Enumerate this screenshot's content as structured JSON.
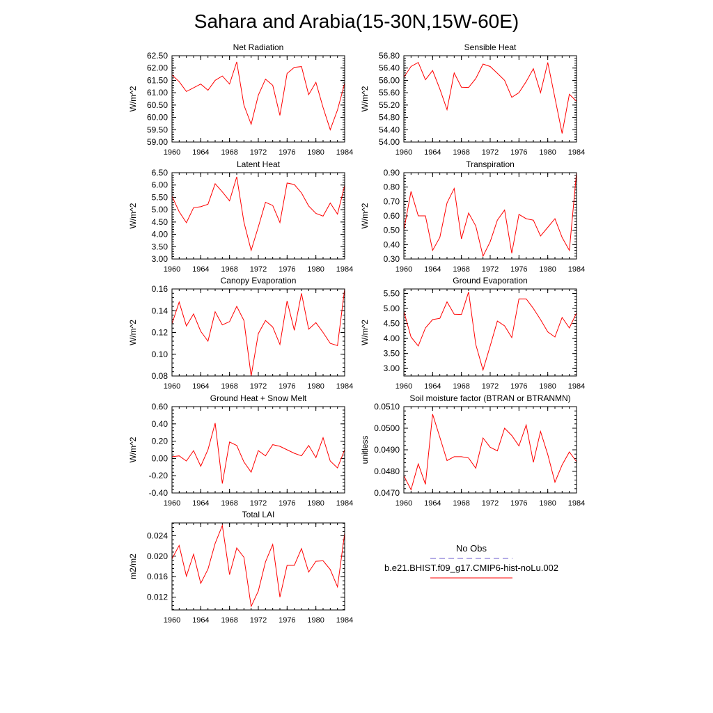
{
  "figure": {
    "title": "Sahara and Arabia(15-30N,15W-60E)",
    "line_color": "#ff0000",
    "obs_color": "#6a5acd"
  },
  "legend": {
    "obs_label": "No Obs",
    "model_label": "b.e21.BHIST.f09_g17.CMIP6-hist-noLu.002"
  },
  "chart_data": [
    {
      "type": "line",
      "title": "Net Radiation",
      "ylabel": "W/m^2",
      "xlim": [
        1960,
        1984
      ],
      "ylim": [
        59.0,
        62.5
      ],
      "xticks": [
        1960,
        1964,
        1968,
        1972,
        1976,
        1980,
        1984
      ],
      "yticks": [
        59.0,
        59.5,
        60.0,
        60.5,
        61.0,
        61.5,
        62.0,
        62.5
      ],
      "ytick_labels": [
        "59.00",
        "59.50",
        "60.00",
        "60.50",
        "61.00",
        "61.50",
        "62.00",
        "62.50"
      ],
      "x": [
        1960,
        1961,
        1962,
        1963,
        1964,
        1965,
        1966,
        1967,
        1968,
        1969,
        1970,
        1971,
        1972,
        1973,
        1974,
        1975,
        1976,
        1977,
        1978,
        1979,
        1980,
        1981,
        1982,
        1983,
        1984
      ],
      "values": [
        61.72,
        61.45,
        61.05,
        61.2,
        61.35,
        61.1,
        61.5,
        61.68,
        61.35,
        62.25,
        60.5,
        59.72,
        60.9,
        61.55,
        61.3,
        60.08,
        61.78,
        62.03,
        62.06,
        60.92,
        61.42,
        60.4,
        59.5,
        60.3,
        61.38
      ]
    },
    {
      "type": "line",
      "title": "Sensible Heat",
      "ylabel": "W/m^2",
      "xlim": [
        1960,
        1984
      ],
      "ylim": [
        54.0,
        56.8
      ],
      "xticks": [
        1960,
        1964,
        1968,
        1972,
        1976,
        1980,
        1984
      ],
      "yticks": [
        54.0,
        54.4,
        54.8,
        55.2,
        55.6,
        56.0,
        56.4,
        56.8
      ],
      "ytick_labels": [
        "54.00",
        "54.40",
        "54.80",
        "55.20",
        "55.60",
        "56.00",
        "56.40",
        "56.80"
      ],
      "x": [
        1960,
        1961,
        1962,
        1963,
        1964,
        1965,
        1966,
        1967,
        1968,
        1969,
        1970,
        1971,
        1972,
        1973,
        1974,
        1975,
        1976,
        1977,
        1978,
        1979,
        1980,
        1981,
        1982,
        1983,
        1984
      ],
      "values": [
        56.1,
        56.45,
        56.58,
        56.02,
        56.32,
        55.72,
        55.05,
        56.24,
        55.78,
        55.77,
        56.06,
        56.53,
        56.45,
        56.23,
        56.0,
        55.45,
        55.6,
        55.96,
        56.38,
        55.6,
        56.58,
        55.43,
        54.28,
        55.55,
        55.32
      ]
    },
    {
      "type": "line",
      "title": "Latent Heat",
      "ylabel": "W/m^2",
      "xlim": [
        1960,
        1984
      ],
      "ylim": [
        3.0,
        6.5
      ],
      "xticks": [
        1960,
        1964,
        1968,
        1972,
        1976,
        1980,
        1984
      ],
      "yticks": [
        3.0,
        3.5,
        4.0,
        4.5,
        5.0,
        5.5,
        6.0,
        6.5
      ],
      "ytick_labels": [
        "3.00",
        "3.50",
        "4.00",
        "4.50",
        "5.00",
        "5.50",
        "6.00",
        "6.50"
      ],
      "x": [
        1960,
        1961,
        1962,
        1963,
        1964,
        1965,
        1966,
        1967,
        1968,
        1969,
        1970,
        1971,
        1972,
        1973,
        1974,
        1975,
        1976,
        1977,
        1978,
        1979,
        1980,
        1981,
        1982,
        1983,
        1984
      ],
      "values": [
        5.55,
        4.92,
        4.47,
        5.08,
        5.12,
        5.22,
        6.05,
        5.72,
        5.36,
        6.33,
        4.5,
        3.35,
        4.3,
        5.3,
        5.17,
        4.48,
        6.08,
        6.02,
        5.68,
        5.15,
        4.85,
        4.74,
        5.27,
        4.82,
        5.98
      ]
    },
    {
      "type": "line",
      "title": "Transpiration",
      "ylabel": "W/m^2",
      "xlim": [
        1960,
        1984
      ],
      "ylim": [
        0.3,
        0.9
      ],
      "xticks": [
        1960,
        1964,
        1968,
        1972,
        1976,
        1980,
        1984
      ],
      "yticks": [
        0.3,
        0.4,
        0.5,
        0.6,
        0.7,
        0.8,
        0.9
      ],
      "ytick_labels": [
        "0.30",
        "0.40",
        "0.50",
        "0.60",
        "0.70",
        "0.80",
        "0.90"
      ],
      "x": [
        1960,
        1961,
        1962,
        1963,
        1964,
        1965,
        1966,
        1967,
        1968,
        1969,
        1970,
        1971,
        1972,
        1973,
        1974,
        1975,
        1976,
        1977,
        1978,
        1979,
        1980,
        1981,
        1982,
        1983,
        1984
      ],
      "values": [
        0.5,
        0.77,
        0.6,
        0.6,
        0.36,
        0.45,
        0.69,
        0.79,
        0.44,
        0.62,
        0.53,
        0.32,
        0.42,
        0.57,
        0.64,
        0.34,
        0.61,
        0.58,
        0.57,
        0.46,
        0.52,
        0.58,
        0.45,
        0.36,
        0.9
      ]
    },
    {
      "type": "line",
      "title": "Canopy Evaporation",
      "ylabel": "W/m^2",
      "xlim": [
        1960,
        1984
      ],
      "ylim": [
        0.08,
        0.16
      ],
      "xticks": [
        1960,
        1964,
        1968,
        1972,
        1976,
        1980,
        1984
      ],
      "yticks": [
        0.08,
        0.1,
        0.12,
        0.14,
        0.16
      ],
      "ytick_labels": [
        "0.08",
        "0.10",
        "0.12",
        "0.14",
        "0.16"
      ],
      "x": [
        1960,
        1961,
        1962,
        1963,
        1964,
        1965,
        1966,
        1967,
        1968,
        1969,
        1970,
        1971,
        1972,
        1973,
        1974,
        1975,
        1976,
        1977,
        1978,
        1979,
        1980,
        1981,
        1982,
        1983,
        1984
      ],
      "values": [
        0.128,
        0.148,
        0.126,
        0.137,
        0.121,
        0.112,
        0.139,
        0.127,
        0.13,
        0.144,
        0.131,
        0.08,
        0.119,
        0.131,
        0.125,
        0.109,
        0.149,
        0.122,
        0.156,
        0.123,
        0.129,
        0.12,
        0.11,
        0.108,
        0.16
      ]
    },
    {
      "type": "line",
      "title": "Ground Evaporation",
      "ylabel": "W/m^2",
      "xlim": [
        1960,
        1984
      ],
      "ylim": [
        2.75,
        5.65
      ],
      "xticks": [
        1960,
        1964,
        1968,
        1972,
        1976,
        1980,
        1984
      ],
      "yticks": [
        3.0,
        3.5,
        4.0,
        4.5,
        5.0,
        5.5
      ],
      "ytick_labels": [
        "3.00",
        "3.50",
        "4.00",
        "4.50",
        "5.00",
        "5.50"
      ],
      "x": [
        1960,
        1961,
        1962,
        1963,
        1964,
        1965,
        1966,
        1967,
        1968,
        1969,
        1970,
        1971,
        1972,
        1973,
        1974,
        1975,
        1976,
        1977,
        1978,
        1979,
        1980,
        1981,
        1982,
        1983,
        1984
      ],
      "values": [
        4.9,
        4.05,
        3.75,
        4.35,
        4.63,
        4.67,
        5.22,
        4.81,
        4.8,
        5.55,
        3.8,
        2.95,
        3.75,
        4.58,
        4.42,
        4.03,
        5.32,
        5.32,
        5.0,
        4.63,
        4.22,
        4.05,
        4.7,
        4.35,
        4.85
      ]
    },
    {
      "type": "line",
      "title": "Ground Heat + Snow Melt",
      "ylabel": "W/m^2",
      "xlim": [
        1960,
        1984
      ],
      "ylim": [
        -0.4,
        0.6
      ],
      "xticks": [
        1960,
        1964,
        1968,
        1972,
        1976,
        1980,
        1984
      ],
      "yticks": [
        -0.4,
        -0.2,
        0.0,
        0.2,
        0.4,
        0.6
      ],
      "ytick_labels": [
        "-0.40",
        "-0.20",
        "0.00",
        "0.20",
        "0.40",
        "0.60"
      ],
      "x": [
        1960,
        1961,
        1962,
        1963,
        1964,
        1965,
        1966,
        1967,
        1968,
        1969,
        1970,
        1971,
        1972,
        1973,
        1974,
        1975,
        1976,
        1977,
        1978,
        1979,
        1980,
        1981,
        1982,
        1983,
        1984
      ],
      "values": [
        0.02,
        0.03,
        -0.03,
        0.09,
        -0.09,
        0.1,
        0.41,
        -0.29,
        0.19,
        0.15,
        -0.04,
        -0.16,
        0.09,
        0.03,
        0.16,
        0.14,
        0.1,
        0.06,
        0.03,
        0.15,
        0.01,
        0.24,
        -0.03,
        -0.11,
        0.1
      ]
    },
    {
      "type": "line",
      "title": "Soil moisture factor (BTRAN or BTRANMN)",
      "ylabel": "unitless",
      "xlim": [
        1960,
        1984
      ],
      "ylim": [
        0.047,
        0.051
      ],
      "xticks": [
        1960,
        1964,
        1968,
        1972,
        1976,
        1980,
        1984
      ],
      "yticks": [
        0.047,
        0.048,
        0.049,
        0.05,
        0.051
      ],
      "ytick_labels": [
        "0.0470",
        "0.0480",
        "0.0490",
        "0.0500",
        "0.0510"
      ],
      "x": [
        1960,
        1961,
        1962,
        1963,
        1964,
        1965,
        1966,
        1967,
        1968,
        1969,
        1970,
        1971,
        1972,
        1973,
        1974,
        1975,
        1976,
        1977,
        1978,
        1979,
        1980,
        1981,
        1982,
        1983,
        1984
      ],
      "values": [
        0.0478,
        0.04715,
        0.04835,
        0.0474,
        0.05065,
        0.04958,
        0.0485,
        0.04868,
        0.04868,
        0.04862,
        0.04815,
        0.04955,
        0.04912,
        0.04895,
        0.05,
        0.04966,
        0.04918,
        0.05015,
        0.04842,
        0.04985,
        0.04878,
        0.0475,
        0.0483,
        0.0489,
        0.04845
      ]
    },
    {
      "type": "line",
      "title": "Total LAI",
      "ylabel": "m2/m2",
      "xlim": [
        1960,
        1984
      ],
      "ylim": [
        0.0095,
        0.0265
      ],
      "xticks": [
        1960,
        1964,
        1968,
        1972,
        1976,
        1980,
        1984
      ],
      "yticks": [
        0.012,
        0.016,
        0.02,
        0.024
      ],
      "ytick_labels": [
        "0.012",
        "0.016",
        "0.020",
        "0.024"
      ],
      "x": [
        1960,
        1961,
        1962,
        1963,
        1964,
        1965,
        1966,
        1967,
        1968,
        1969,
        1970,
        1971,
        1972,
        1973,
        1974,
        1975,
        1976,
        1977,
        1978,
        1979,
        1980,
        1981,
        1982,
        1983,
        1984
      ],
      "values": [
        0.0195,
        0.0221,
        0.0161,
        0.0204,
        0.0147,
        0.0175,
        0.0225,
        0.026,
        0.0164,
        0.0216,
        0.0198,
        0.0102,
        0.0132,
        0.0189,
        0.0223,
        0.012,
        0.0182,
        0.0182,
        0.0215,
        0.0169,
        0.019,
        0.0191,
        0.0174,
        0.014,
        0.0245
      ]
    }
  ]
}
